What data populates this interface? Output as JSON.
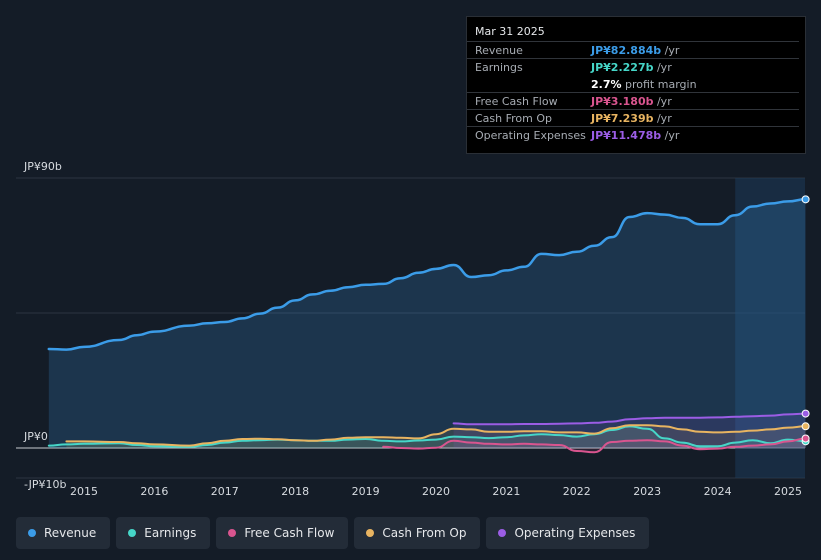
{
  "chart_data": {
    "type": "line",
    "y_unit": "JP¥ billion",
    "ylim": [
      -10,
      90
    ],
    "y_tick_labels": [
      "JP¥90b",
      "JP¥0",
      "-JP¥10b"
    ],
    "x_tick_labels": [
      "2015",
      "2016",
      "2017",
      "2018",
      "2019",
      "2020",
      "2021",
      "2022",
      "2023",
      "2024",
      "2025"
    ],
    "highlight_region": "2024.25–2025.25 (past year)",
    "series": [
      {
        "name": "Revenue",
        "color": "#3b9ce8",
        "points": [
          [
            2014.5,
            33
          ],
          [
            2014.75,
            32.8
          ],
          [
            2015,
            33.7
          ],
          [
            2015.5,
            36
          ],
          [
            2015.75,
            37.6
          ],
          [
            2016,
            38.8
          ],
          [
            2016.5,
            40.8
          ],
          [
            2016.75,
            41.6
          ],
          [
            2017,
            42
          ],
          [
            2017.25,
            43.2
          ],
          [
            2017.5,
            44.8
          ],
          [
            2017.75,
            46.8
          ],
          [
            2018,
            49.2
          ],
          [
            2018.25,
            51.2
          ],
          [
            2018.5,
            52.4
          ],
          [
            2018.75,
            53.6
          ],
          [
            2019,
            54.4
          ],
          [
            2019.25,
            54.7
          ],
          [
            2019.5,
            56.6
          ],
          [
            2019.75,
            58.4
          ],
          [
            2020,
            59.7
          ],
          [
            2020.25,
            61
          ],
          [
            2020.5,
            57
          ],
          [
            2020.75,
            57.6
          ],
          [
            2021,
            59.2
          ],
          [
            2021.25,
            60.4
          ],
          [
            2021.5,
            64.7
          ],
          [
            2021.75,
            64.3
          ],
          [
            2022,
            65.4
          ],
          [
            2022.25,
            67.4
          ],
          [
            2022.5,
            70.3
          ],
          [
            2022.75,
            77
          ],
          [
            2023,
            78.3
          ],
          [
            2023.25,
            77.8
          ],
          [
            2023.5,
            76.7
          ],
          [
            2023.75,
            74.6
          ],
          [
            2024,
            74.6
          ],
          [
            2024.25,
            77.6
          ],
          [
            2024.5,
            80.5
          ],
          [
            2024.75,
            81.5
          ],
          [
            2025,
            82.2
          ],
          [
            2025.25,
            82.884
          ]
        ]
      },
      {
        "name": "Earnings",
        "color": "#46d6c8",
        "points": [
          [
            2014.5,
            0.8
          ],
          [
            2014.75,
            1.2
          ],
          [
            2015,
            1.4
          ],
          [
            2015.5,
            1.6
          ],
          [
            2015.75,
            1
          ],
          [
            2016,
            0.6
          ],
          [
            2016.5,
            0.4
          ],
          [
            2016.75,
            1
          ],
          [
            2017,
            1.8
          ],
          [
            2017.25,
            2.4
          ],
          [
            2017.5,
            2.6
          ],
          [
            2017.75,
            2.8
          ],
          [
            2018,
            2.6
          ],
          [
            2018.25,
            2.4
          ],
          [
            2018.5,
            2.4
          ],
          [
            2018.75,
            2.8
          ],
          [
            2019,
            3
          ],
          [
            2019.25,
            2.4
          ],
          [
            2019.5,
            2.2
          ],
          [
            2019.75,
            2.5
          ],
          [
            2020,
            2.8
          ],
          [
            2020.25,
            3.8
          ],
          [
            2020.5,
            3.6
          ],
          [
            2020.75,
            3.3
          ],
          [
            2021,
            3.6
          ],
          [
            2021.25,
            4.2
          ],
          [
            2021.5,
            4.6
          ],
          [
            2021.75,
            4.3
          ],
          [
            2022,
            3.8
          ],
          [
            2022.25,
            4.6
          ],
          [
            2022.5,
            6
          ],
          [
            2022.75,
            7.2
          ],
          [
            2023,
            6.4
          ],
          [
            2023.25,
            3.2
          ],
          [
            2023.5,
            1.8
          ],
          [
            2023.75,
            0.6
          ],
          [
            2024,
            0.6
          ],
          [
            2024.25,
            1.8
          ],
          [
            2024.5,
            2.6
          ],
          [
            2024.75,
            1.6
          ],
          [
            2025,
            2.8
          ],
          [
            2025.25,
            2.227
          ]
        ]
      },
      {
        "name": "Free Cash Flow",
        "color": "#d9558f",
        "points": [
          [
            2019.25,
            0.4
          ],
          [
            2019.5,
            0
          ],
          [
            2019.75,
            -0.2
          ],
          [
            2020,
            0.1
          ],
          [
            2020.25,
            2.4
          ],
          [
            2020.5,
            1.8
          ],
          [
            2020.75,
            1.4
          ],
          [
            2021,
            1.2
          ],
          [
            2021.25,
            1.4
          ],
          [
            2021.5,
            1.2
          ],
          [
            2021.75,
            1
          ],
          [
            2022,
            -1
          ],
          [
            2022.25,
            -1.4
          ],
          [
            2022.5,
            2
          ],
          [
            2022.75,
            2.4
          ],
          [
            2023,
            2.6
          ],
          [
            2023.25,
            2.2
          ],
          [
            2023.5,
            0.8
          ],
          [
            2023.75,
            -0.4
          ],
          [
            2024,
            -0.2
          ],
          [
            2024.25,
            0.4
          ],
          [
            2024.5,
            0.8
          ],
          [
            2024.75,
            1.2
          ],
          [
            2025,
            2.2
          ],
          [
            2025.25,
            3.18
          ]
        ]
      },
      {
        "name": "Cash From Op",
        "color": "#e8b461",
        "points": [
          [
            2014.75,
            2.2
          ],
          [
            2015,
            2.2
          ],
          [
            2015.5,
            2
          ],
          [
            2015.75,
            1.6
          ],
          [
            2016,
            1.2
          ],
          [
            2016.5,
            0.8
          ],
          [
            2016.75,
            1.6
          ],
          [
            2017,
            2.4
          ],
          [
            2017.25,
            3
          ],
          [
            2017.5,
            3.1
          ],
          [
            2017.75,
            2.9
          ],
          [
            2018,
            2.6
          ],
          [
            2018.25,
            2.4
          ],
          [
            2018.5,
            2.8
          ],
          [
            2018.75,
            3.4
          ],
          [
            2019,
            3.6
          ],
          [
            2019.25,
            3.6
          ],
          [
            2019.5,
            3.4
          ],
          [
            2019.75,
            3.2
          ],
          [
            2020,
            4.6
          ],
          [
            2020.25,
            6.4
          ],
          [
            2020.5,
            6.2
          ],
          [
            2020.75,
            5.4
          ],
          [
            2021,
            5.4
          ],
          [
            2021.25,
            5.6
          ],
          [
            2021.5,
            5.6
          ],
          [
            2021.75,
            5.2
          ],
          [
            2022,
            5.2
          ],
          [
            2022.25,
            4.8
          ],
          [
            2022.5,
            6.6
          ],
          [
            2022.75,
            7.6
          ],
          [
            2023,
            7.6
          ],
          [
            2023.25,
            7.2
          ],
          [
            2023.5,
            6.2
          ],
          [
            2023.75,
            5.4
          ],
          [
            2024,
            5.2
          ],
          [
            2024.25,
            5.4
          ],
          [
            2024.5,
            5.8
          ],
          [
            2024.75,
            6.2
          ],
          [
            2025,
            6.8
          ],
          [
            2025.25,
            7.239
          ]
        ]
      },
      {
        "name": "Operating Expenses",
        "color": "#9b5de5",
        "points": [
          [
            2020.25,
            8.2
          ],
          [
            2020.5,
            7.9
          ],
          [
            2020.75,
            7.9
          ],
          [
            2021,
            7.9
          ],
          [
            2021.25,
            8
          ],
          [
            2021.5,
            8
          ],
          [
            2021.75,
            8.1
          ],
          [
            2022,
            8.2
          ],
          [
            2022.25,
            8.4
          ],
          [
            2022.5,
            8.8
          ],
          [
            2022.75,
            9.6
          ],
          [
            2023,
            9.9
          ],
          [
            2023.25,
            10.1
          ],
          [
            2023.5,
            10.1
          ],
          [
            2023.75,
            10.1
          ],
          [
            2024,
            10.2
          ],
          [
            2024.25,
            10.4
          ],
          [
            2024.5,
            10.6
          ],
          [
            2024.75,
            10.8
          ],
          [
            2025,
            11.2
          ],
          [
            2025.25,
            11.478
          ]
        ]
      }
    ]
  },
  "tooltip": {
    "date": "Mar 31 2025",
    "rows": [
      {
        "label": "Revenue",
        "value": "JP¥82.884b",
        "unit": " /yr",
        "color": "#3b9ce8"
      },
      {
        "label": "Earnings",
        "value": "JP¥2.227b",
        "unit": " /yr",
        "color": "#46d6c8"
      },
      {
        "label": "",
        "value": "2.7%",
        "unit": " profit margin",
        "color": "#ffffff"
      },
      {
        "label": "Free Cash Flow",
        "value": "JP¥3.180b",
        "unit": " /yr",
        "color": "#d9558f"
      },
      {
        "label": "Cash From Op",
        "value": "JP¥7.239b",
        "unit": " /yr",
        "color": "#e8b461"
      },
      {
        "label": "Operating Expenses",
        "value": "JP¥11.478b",
        "unit": " /yr",
        "color": "#9b5de5"
      }
    ]
  },
  "legend": [
    {
      "label": "Revenue",
      "color": "#3b9ce8"
    },
    {
      "label": "Earnings",
      "color": "#46d6c8"
    },
    {
      "label": "Free Cash Flow",
      "color": "#d9558f"
    },
    {
      "label": "Cash From Op",
      "color": "#e8b461"
    },
    {
      "label": "Operating Expenses",
      "color": "#9b5de5"
    }
  ]
}
